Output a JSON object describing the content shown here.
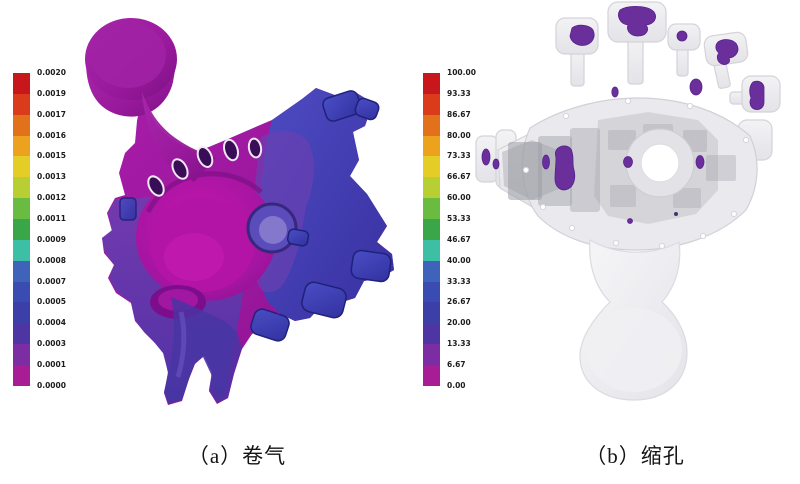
{
  "figure": {
    "background": "#ffffff",
    "colormap": [
      "#c8161d",
      "#d93b1b",
      "#e2711c",
      "#eda21f",
      "#e5cd28",
      "#b8cf33",
      "#6abc40",
      "#3aa64a",
      "#3dbfa6",
      "#3f63b8",
      "#3a4cb2",
      "#3c3fa8",
      "#4d36a3",
      "#7c2da4",
      "#a81c96"
    ],
    "panels": [
      {
        "id": "a",
        "caption": "（a）卷气",
        "scale_labels": [
          "0.0020",
          "0.0019",
          "0.0017",
          "0.0016",
          "0.0015",
          "0.0013",
          "0.0012",
          "0.0011",
          "0.0009",
          "0.0008",
          "0.0007",
          "0.0005",
          "0.0004",
          "0.0003",
          "0.0001",
          "0.0000"
        ]
      },
      {
        "id": "b",
        "caption": "（b）缩孔",
        "scale_labels": [
          "100.00",
          "93.33",
          "86.67",
          "80.00",
          "73.33",
          "66.67",
          "60.00",
          "53.33",
          "46.67",
          "40.00",
          "33.33",
          "26.67",
          "20.00",
          "13.33",
          "6.67",
          "0.00"
        ]
      }
    ],
    "model_colors": {
      "air_entrapment_body": "#9e1ba0",
      "air_entrapment_bright": "#c615ad",
      "air_entrapment_blue": "#3d3fb0",
      "air_entrapment_purple": "#5b3aa8",
      "shrinkage_body": "#eaeaee",
      "shrinkage_internals": "#9d9da6",
      "shrinkage_defect": "#6b2f9c"
    }
  }
}
